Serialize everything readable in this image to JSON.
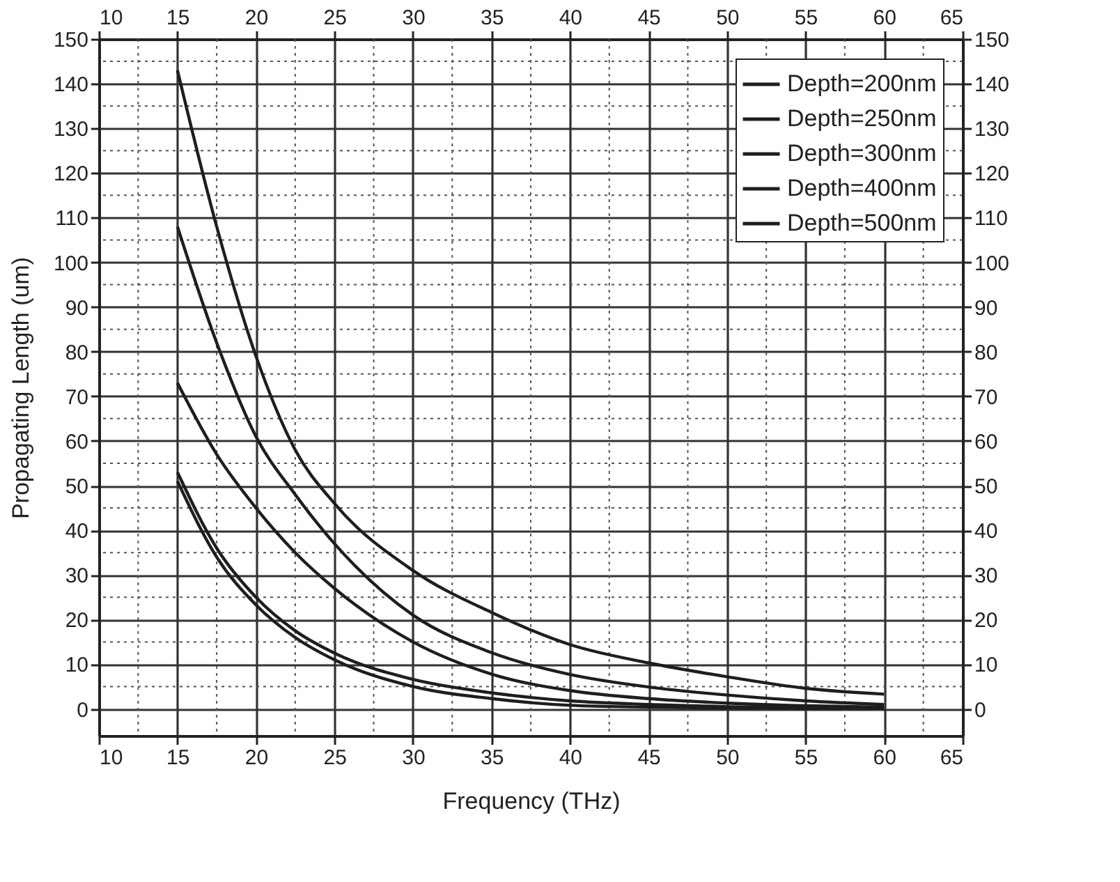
{
  "chart_data": {
    "type": "line",
    "xlabel": "Frequency (THz)",
    "ylabel": "Propagating Length (um)",
    "x": [
      15,
      17.5,
      20,
      22.5,
      25,
      30,
      35,
      40,
      45,
      50,
      55,
      60
    ],
    "series": [
      {
        "name": "Depth=200nm",
        "color": "#1e1e1e",
        "values": [
          143,
          108,
          79,
          58,
          46,
          31,
          21.6,
          14.4,
          10.3,
          7.2,
          4.6,
          3.3
        ]
      },
      {
        "name": "Depth=250nm",
        "color": "#1e1e1e",
        "values": [
          108,
          82,
          61,
          48,
          37,
          21,
          12.6,
          7.7,
          4.9,
          3.1,
          1.8,
          1.0
        ]
      },
      {
        "name": "Depth=300nm",
        "color": "#1e1e1e",
        "values": [
          73,
          57,
          45,
          35,
          27,
          15,
          7.8,
          4.1,
          2.3,
          1.3,
          0.7,
          0.4
        ]
      },
      {
        "name": "Depth=400nm",
        "color": "#1e1e1e",
        "values": [
          53,
          36,
          25,
          17.5,
          12.5,
          6.6,
          3.6,
          1.8,
          1.0,
          0.5,
          0.3,
          0.2
        ]
      },
      {
        "name": "Depth=500nm",
        "color": "#1e1e1e",
        "values": [
          51,
          34,
          23.3,
          16,
          11,
          5.0,
          2.3,
          0.8,
          0.4,
          0.2,
          0.1,
          0.1
        ]
      }
    ],
    "xlim": [
      10,
      65
    ],
    "xticks": [
      10,
      15,
      20,
      25,
      30,
      35,
      40,
      45,
      50,
      55,
      60,
      65
    ],
    "x2lim": [
      10,
      65
    ],
    "x2ticks": [
      10,
      15,
      20,
      25,
      30,
      35,
      40,
      45,
      50,
      55,
      60,
      65
    ],
    "ylim": [
      -6,
      150
    ],
    "yticks": [
      0,
      10,
      20,
      30,
      40,
      50,
      60,
      70,
      80,
      90,
      100,
      110,
      120,
      130,
      140,
      150
    ],
    "y2lim": [
      -6,
      150
    ],
    "y2ticks": [
      0,
      10,
      20,
      30,
      40,
      50,
      60,
      70,
      80,
      90,
      100,
      110,
      120,
      130,
      140,
      150
    ],
    "grid": true,
    "legend": "top right",
    "marker": "none",
    "line_style": "solid"
  }
}
